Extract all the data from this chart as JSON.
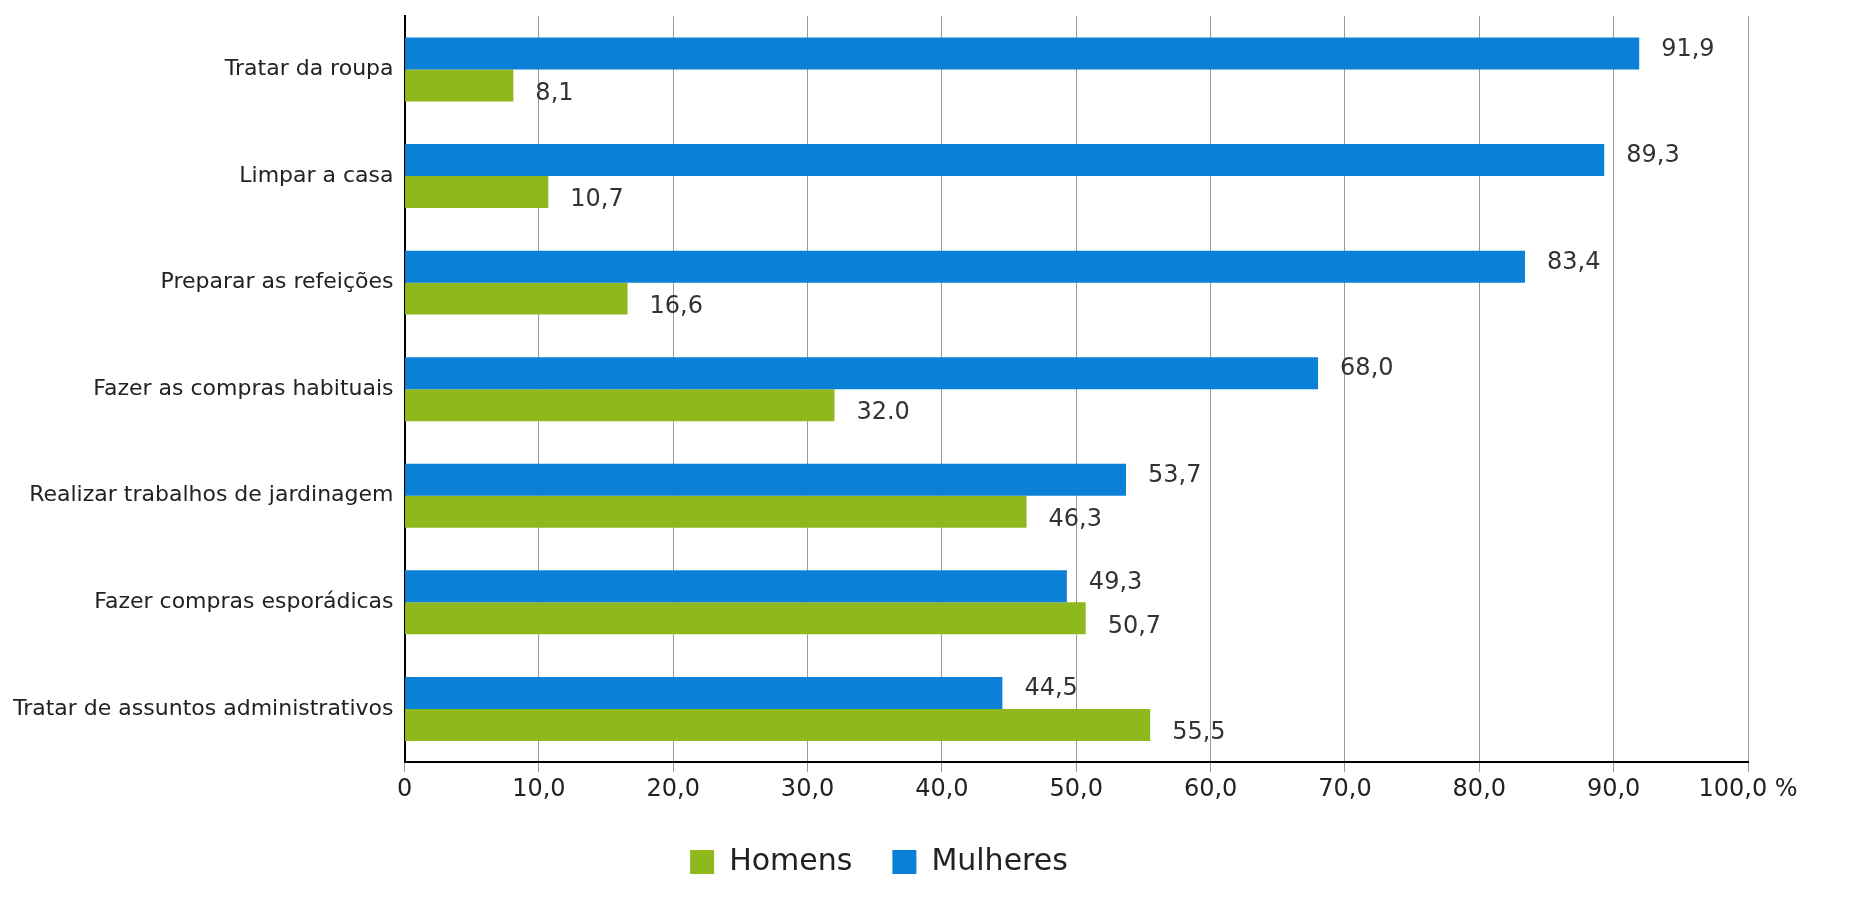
{
  "chart_data": {
    "type": "bar",
    "orientation": "horizontal",
    "categories": [
      "Tratar da roupa",
      "Limpar a casa",
      "Preparar as refeições",
      "Fazer as compras habituais",
      "Realizar trabalhos de jardinagem",
      "Fazer compras esporádicas",
      "Tratar de assuntos administrativos"
    ],
    "series": [
      {
        "name": "Mulheres",
        "color": "#0a80d6",
        "values": [
          91.9,
          89.3,
          83.4,
          68.0,
          53.7,
          49.3,
          44.5
        ],
        "value_labels": [
          "91,9",
          "89,3",
          "83,4",
          "68,0",
          "53,7",
          "49,3",
          "44,5"
        ]
      },
      {
        "name": "Homens",
        "color": "#8fb81c",
        "values": [
          8.1,
          10.7,
          16.6,
          32.0,
          46.3,
          50.7,
          55.5
        ],
        "value_labels": [
          "8,1",
          "10,7",
          "16,6",
          "32.0",
          "46,3",
          "50,7",
          "55,5"
        ]
      }
    ],
    "xlim": [
      0,
      100
    ],
    "xticks": [
      0,
      {
        "value": 10,
        "label": "10,0"
      },
      {
        "value": 20,
        "label": "20,0"
      },
      {
        "value": 30,
        "label": "30,0"
      },
      {
        "value": 40,
        "label": "40,0"
      },
      {
        "value": 50,
        "label": "50,0"
      },
      {
        "value": 60,
        "label": "60,0"
      },
      {
        "value": 70,
        "label": "70,0"
      },
      {
        "value": 80,
        "label": "80,0"
      },
      {
        "value": 90,
        "label": "90,0"
      },
      {
        "value": 100,
        "label": "100,0 %"
      }
    ],
    "grid": "x",
    "legend": "bottom"
  }
}
